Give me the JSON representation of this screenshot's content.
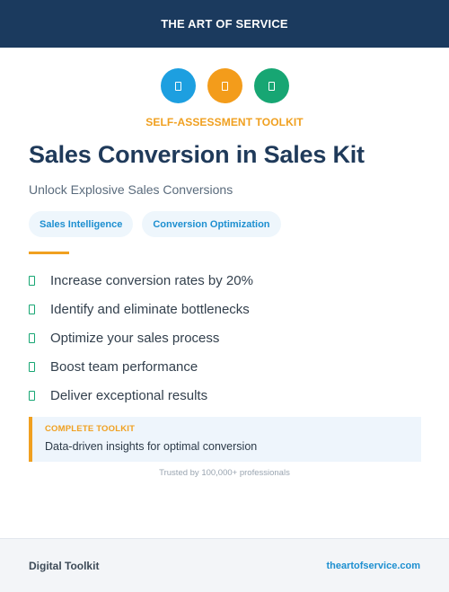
{
  "header": {
    "brand": "THE ART OF SERVICE"
  },
  "icons": [
    {
      "name": "document-icon",
      "color": "#1d9fe0"
    },
    {
      "name": "document-icon",
      "color": "#f39c1b"
    },
    {
      "name": "document-icon",
      "color": "#17a673"
    }
  ],
  "kit_label": "SELF-ASSESSMENT TOOLKIT",
  "title": "Sales Conversion in Sales Kit",
  "subtitle": "Unlock Explosive Sales Conversions",
  "tags": [
    "Sales Intelligence",
    "Conversion Optimization"
  ],
  "features": [
    "Increase conversion rates by 20%",
    "Identify and eliminate bottlenecks",
    "Optimize your sales process",
    "Boost team performance",
    "Deliver exceptional results"
  ],
  "callout": {
    "label": "COMPLETE TOOLKIT",
    "text": "Data-driven insights for optimal conversion"
  },
  "trusted": "Trusted by 100,000+ professionals",
  "footer": {
    "left": "Digital Toolkit",
    "right": "theartofservice.com"
  },
  "colors": {
    "header_bg": "#1b3a5e",
    "accent_orange": "#f0a020",
    "link_blue": "#1d8fd0",
    "check_green": "#17a673"
  }
}
